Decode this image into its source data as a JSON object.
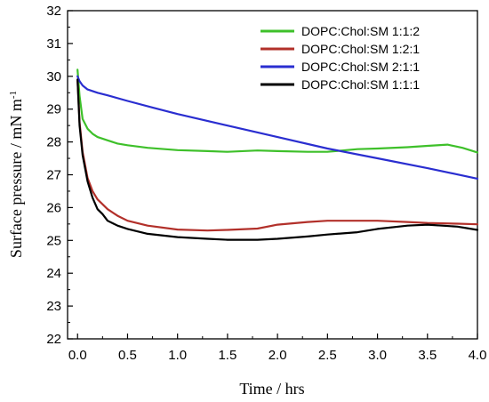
{
  "chart_data": {
    "type": "line",
    "xlabel": "Time / hrs",
    "ylabel": "Surface pressure / mN m",
    "ylabel_sup": "-1",
    "xlim": [
      -0.1,
      4.0
    ],
    "ylim": [
      22,
      32
    ],
    "x_ticks": [
      0.0,
      0.5,
      1.0,
      1.5,
      2.0,
      2.5,
      3.0,
      3.5,
      4.0
    ],
    "x_tick_labels": [
      "0.0",
      "0.5",
      "1.0",
      "1.5",
      "2.0",
      "2.5",
      "3.0",
      "3.5",
      "4.0"
    ],
    "y_ticks": [
      22,
      23,
      24,
      25,
      26,
      27,
      28,
      29,
      30,
      31,
      32
    ],
    "y_tick_labels": [
      "22",
      "23",
      "24",
      "25",
      "26",
      "27",
      "28",
      "29",
      "30",
      "31",
      "32"
    ],
    "legend_position": "top-right",
    "grid": false,
    "series": [
      {
        "name": "DOPC:Chol:SM 1:1:2",
        "color": "#3ec02a",
        "x": [
          0.0,
          0.02,
          0.05,
          0.1,
          0.15,
          0.2,
          0.3,
          0.4,
          0.5,
          0.7,
          1.0,
          1.3,
          1.5,
          1.8,
          2.0,
          2.3,
          2.5,
          2.8,
          3.0,
          3.3,
          3.5,
          3.7,
          3.85,
          4.0
        ],
        "values": [
          30.2,
          29.4,
          28.7,
          28.4,
          28.25,
          28.15,
          28.05,
          27.95,
          27.9,
          27.82,
          27.75,
          27.72,
          27.7,
          27.74,
          27.72,
          27.7,
          27.7,
          27.78,
          27.8,
          27.84,
          27.88,
          27.92,
          27.82,
          27.68
        ]
      },
      {
        "name": "DOPC:Chol:SM 1:2:1",
        "color": "#b2302a",
        "x": [
          0.0,
          0.02,
          0.05,
          0.1,
          0.15,
          0.2,
          0.3,
          0.4,
          0.5,
          0.7,
          1.0,
          1.3,
          1.5,
          1.8,
          2.0,
          2.3,
          2.5,
          2.8,
          3.0,
          3.3,
          3.5,
          3.8,
          4.0
        ],
        "values": [
          29.9,
          28.6,
          27.7,
          26.9,
          26.5,
          26.25,
          25.95,
          25.75,
          25.6,
          25.45,
          25.33,
          25.3,
          25.32,
          25.36,
          25.48,
          25.56,
          25.6,
          25.6,
          25.6,
          25.56,
          25.53,
          25.51,
          25.49
        ]
      },
      {
        "name": "DOPC:Chol:SM 2:1:1",
        "color": "#2a2ed0",
        "x": [
          0.0,
          0.02,
          0.05,
          0.1,
          0.2,
          0.3,
          0.5,
          0.75,
          1.0,
          1.5,
          2.0,
          2.5,
          3.0,
          3.5,
          4.0
        ],
        "values": [
          30.0,
          29.85,
          29.72,
          29.6,
          29.5,
          29.42,
          29.25,
          29.05,
          28.85,
          28.5,
          28.15,
          27.8,
          27.5,
          27.2,
          26.88
        ]
      },
      {
        "name": "DOPC:Chol:SM 1:1:1",
        "color": "#000000",
        "x": [
          0.0,
          0.02,
          0.05,
          0.1,
          0.15,
          0.2,
          0.25,
          0.3,
          0.4,
          0.5,
          0.7,
          1.0,
          1.3,
          1.5,
          1.8,
          2.0,
          2.3,
          2.5,
          2.8,
          3.0,
          3.3,
          3.5,
          3.8,
          4.0
        ],
        "values": [
          29.9,
          28.5,
          27.6,
          26.8,
          26.3,
          25.95,
          25.8,
          25.6,
          25.45,
          25.35,
          25.2,
          25.1,
          25.05,
          25.02,
          25.02,
          25.05,
          25.12,
          25.18,
          25.25,
          25.35,
          25.45,
          25.48,
          25.42,
          25.32
        ]
      }
    ]
  }
}
